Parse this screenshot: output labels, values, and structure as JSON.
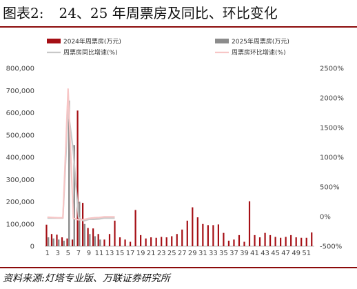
{
  "figure": {
    "label": "图表2:",
    "title": "24、25 年周票房及同比、环比变化",
    "source": "资料来源:灯塔专业版、万联证券研究所"
  },
  "colors": {
    "bar_2024": "#a50f15",
    "bar_2025": "#8c8c8c",
    "line_yoy": "#c8c8c8",
    "line_wow": "#f7c6c6",
    "rule": "#8b0a0a"
  },
  "chart_data": {
    "type": "bar",
    "x_ticks": [
      "1",
      "3",
      "5",
      "7",
      "9",
      "11",
      "13",
      "15",
      "17",
      "19",
      "21",
      "23",
      "25",
      "27",
      "29",
      "31",
      "33",
      "35",
      "37",
      "39",
      "41",
      "43",
      "45",
      "47",
      "49",
      "51"
    ],
    "y_left": {
      "min": 0,
      "max": 800000,
      "ticks": [
        "0",
        "100,000",
        "200,000",
        "300,000",
        "400,000",
        "500,000",
        "600,000",
        "700,000",
        "800,000"
      ]
    },
    "y_right": {
      "min": -500,
      "max": 2500,
      "ticks": [
        "-500%",
        "0%",
        "500%",
        "1000%",
        "1500%",
        "2000%",
        "2500%"
      ]
    },
    "grid": false,
    "legend_position": "top",
    "series": [
      {
        "name": "2024年周票房(万元)",
        "type": "bar",
        "axis": "left",
        "weeks": [
          1,
          2,
          3,
          4,
          5,
          6,
          7,
          8,
          9,
          10,
          11,
          12,
          13,
          14,
          15,
          16,
          17,
          18,
          19,
          20,
          21,
          22,
          23,
          24,
          25,
          26,
          27,
          28,
          29,
          30,
          31,
          32,
          33,
          34,
          35,
          36,
          37,
          38,
          39,
          40,
          41,
          42,
          43,
          44,
          45,
          46,
          47,
          48,
          49,
          50,
          51,
          52
        ],
        "values": [
          97000,
          55000,
          52000,
          40000,
          35000,
          30000,
          610000,
          195000,
          82000,
          80000,
          55000,
          30000,
          55000,
          115000,
          40000,
          30000,
          20000,
          163000,
          50000,
          35000,
          40000,
          38000,
          42000,
          40000,
          45000,
          55000,
          75000,
          115000,
          175000,
          130000,
          100000,
          95000,
          95000,
          98000,
          60000,
          25000,
          30000,
          50000,
          20000,
          202000,
          50000,
          40000,
          60000,
          50000,
          42000,
          38000,
          42000,
          50000,
          40000,
          38000,
          38000,
          62000
        ]
      },
      {
        "name": "2025年周票房(万元)",
        "type": "bar",
        "axis": "left",
        "weeks": [
          1,
          2,
          3,
          4,
          5,
          6,
          7,
          8,
          9,
          10,
          11
        ],
        "values": [
          40000,
          35000,
          30000,
          25000,
          655000,
          455000,
          200000,
          100000,
          55000,
          45000,
          30000
        ]
      },
      {
        "name": "周票房同比增速(%)",
        "type": "line",
        "axis": "right",
        "weeks": [
          1,
          2,
          3,
          4,
          5,
          6,
          7,
          8,
          9,
          10,
          11,
          12,
          13,
          14
        ],
        "values": [
          -25,
          -25,
          -25,
          -25,
          1800,
          1100,
          -15,
          -75,
          -45,
          -45,
          -40,
          -25,
          -25,
          -25
        ]
      },
      {
        "name": "周票房环比增速(%)",
        "type": "line",
        "axis": "right",
        "weeks": [
          1,
          2,
          3,
          4,
          5,
          6,
          7,
          8,
          9,
          10,
          11,
          12,
          13,
          14
        ],
        "values": [
          -10,
          -15,
          -20,
          -20,
          2150,
          -30,
          -55,
          -50,
          -30,
          -20,
          -15,
          -5,
          -5,
          -5
        ]
      }
    ]
  }
}
